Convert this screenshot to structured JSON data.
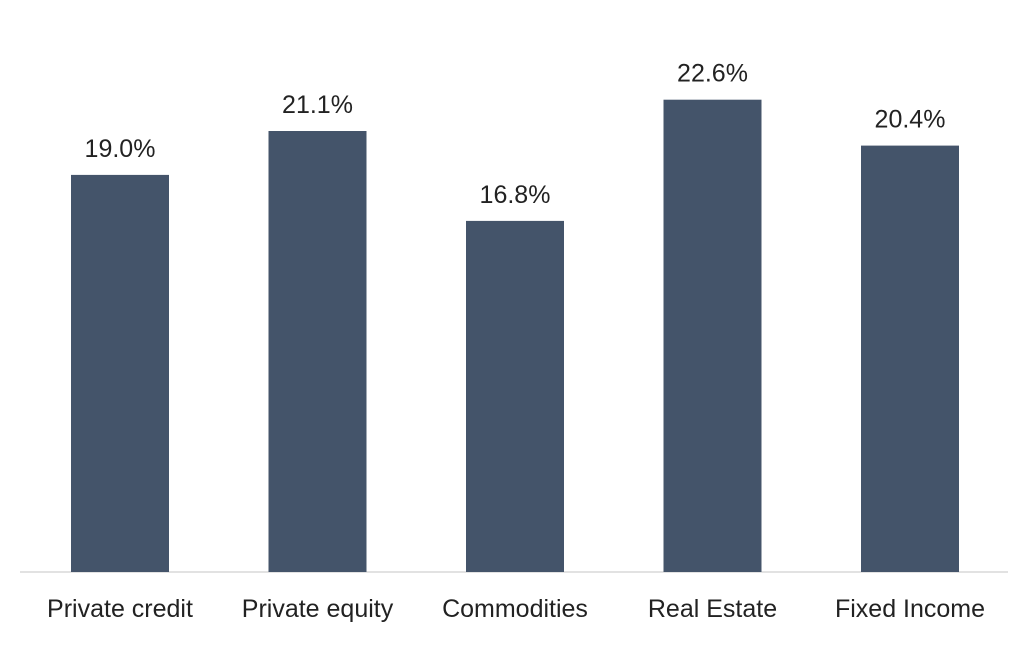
{
  "chart_data": {
    "type": "bar",
    "categories": [
      "Private credit",
      "Private equity",
      "Commodities",
      "Real Estate",
      "Fixed Income"
    ],
    "values": [
      19.0,
      21.1,
      16.8,
      22.6,
      20.4
    ],
    "value_labels": [
      "19.0%",
      "21.1%",
      "16.8%",
      "22.6%",
      "20.4%"
    ],
    "title": "",
    "xlabel": "",
    "ylabel": "",
    "ylim": [
      0,
      25
    ],
    "grid": false,
    "bar_color": "#44546a",
    "axis_color": "#d9d9d9"
  }
}
